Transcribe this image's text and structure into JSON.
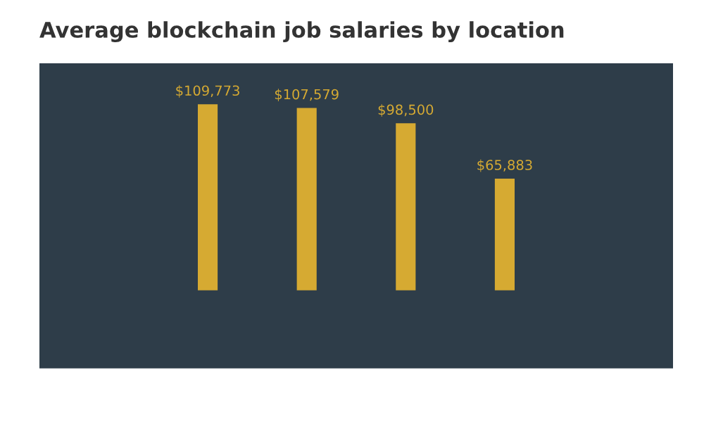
{
  "chart_data": {
    "type": "bar",
    "title": "Average blockchain job salaries by location",
    "categories": [
      null,
      null,
      null,
      null
    ],
    "values": [
      109773,
      107579,
      98500,
      65883
    ],
    "value_labels": [
      "$109,773",
      "$107,579",
      "$98,500",
      "$65,883"
    ],
    "color": "#d6aa32"
  }
}
